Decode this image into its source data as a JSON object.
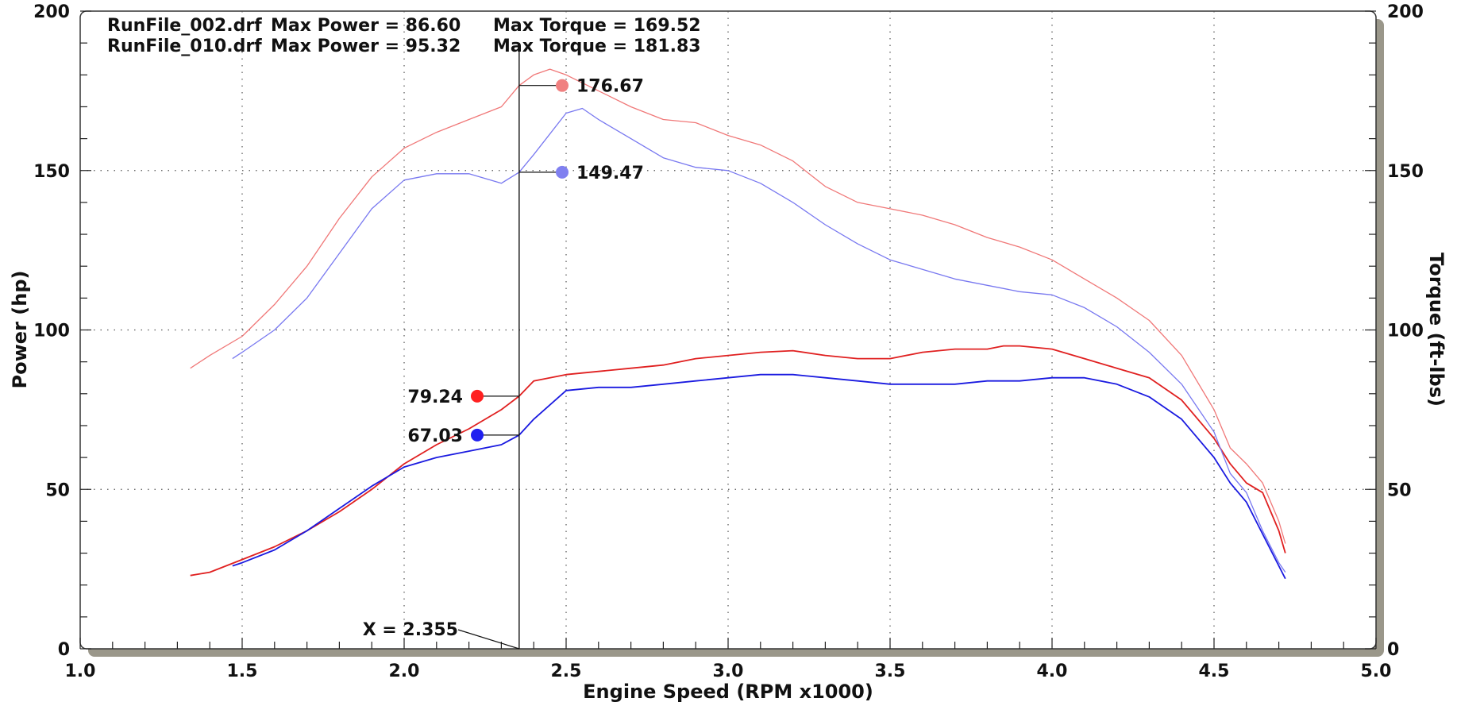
{
  "chart_data": {
    "type": "line",
    "xlabel": "Engine Speed (RPM x1000)",
    "ylabel": "Power (hp)",
    "y2label": "Torque (ft-lbs)",
    "xlim": [
      1.0,
      5.0
    ],
    "ylim": [
      0,
      200
    ],
    "y2lim": [
      0,
      200
    ],
    "x_ticks": [
      "1.0",
      "1.5",
      "2.0",
      "2.5",
      "3.0",
      "3.5",
      "4.0",
      "4.5",
      "5.0"
    ],
    "y_ticks": [
      "0",
      "50",
      "100",
      "150",
      "200"
    ],
    "y2_ticks": [
      "0",
      "50",
      "100",
      "150",
      "200"
    ],
    "grid": true,
    "header": [
      {
        "file": "RunFile_002.drf",
        "power": "Max Power = 86.60",
        "torque": "Max Torque = 169.52"
      },
      {
        "file": "RunFile_010.drf",
        "power": "Max Power = 95.32",
        "torque": "Max Torque = 181.83"
      }
    ],
    "cursor": {
      "x": 2.355,
      "label": "X = 2.355"
    },
    "markers": [
      {
        "series": "torque_010",
        "value": 176.67,
        "label": "176.67",
        "color": "#f08080"
      },
      {
        "series": "torque_002",
        "value": 149.47,
        "label": "149.47",
        "color": "#8080f0"
      },
      {
        "series": "power_010",
        "value": 79.24,
        "label": "79.24",
        "color": "#ff2020"
      },
      {
        "series": "power_002",
        "value": 67.03,
        "label": "67.03",
        "color": "#2020f0"
      }
    ],
    "series": [
      {
        "id": "power_010",
        "axis": "left",
        "color": "#e02020",
        "x": [
          1.34,
          1.4,
          1.5,
          1.6,
          1.7,
          1.8,
          1.9,
          2.0,
          2.1,
          2.2,
          2.3,
          2.355,
          2.4,
          2.5,
          2.6,
          2.7,
          2.8,
          2.9,
          3.0,
          3.1,
          3.2,
          3.3,
          3.4,
          3.5,
          3.6,
          3.7,
          3.8,
          3.85,
          3.9,
          4.0,
          4.1,
          4.2,
          4.3,
          4.4,
          4.5,
          4.55,
          4.6,
          4.65,
          4.7,
          4.72
        ],
        "y": [
          23,
          24,
          28,
          32,
          37,
          43,
          50,
          58,
          64,
          69,
          75,
          79.24,
          84,
          86,
          87,
          88,
          89,
          91,
          92,
          93,
          93.5,
          92,
          91,
          91,
          93,
          94,
          94,
          95,
          95,
          94,
          91,
          88,
          85,
          78,
          66,
          58,
          52,
          49,
          37,
          30
        ]
      },
      {
        "id": "power_002",
        "axis": "left",
        "color": "#1a1ae0",
        "x": [
          1.47,
          1.5,
          1.6,
          1.7,
          1.8,
          1.9,
          2.0,
          2.1,
          2.2,
          2.3,
          2.355,
          2.4,
          2.5,
          2.6,
          2.7,
          2.8,
          2.9,
          3.0,
          3.1,
          3.2,
          3.3,
          3.4,
          3.5,
          3.6,
          3.7,
          3.8,
          3.9,
          4.0,
          4.1,
          4.2,
          4.3,
          4.4,
          4.5,
          4.55,
          4.6,
          4.65,
          4.7,
          4.72
        ],
        "y": [
          26,
          27,
          31,
          37,
          44,
          51,
          57,
          60,
          62,
          64,
          67.03,
          72,
          81,
          82,
          82,
          83,
          84,
          85,
          86,
          86,
          85,
          84,
          83,
          83,
          83,
          84,
          84,
          85,
          85,
          83,
          79,
          72,
          60,
          52,
          46,
          36,
          26,
          22
        ]
      },
      {
        "id": "torque_010",
        "axis": "right",
        "color": "#f07878",
        "x": [
          1.34,
          1.4,
          1.5,
          1.6,
          1.7,
          1.8,
          1.9,
          2.0,
          2.1,
          2.2,
          2.3,
          2.355,
          2.4,
          2.45,
          2.5,
          2.6,
          2.7,
          2.8,
          2.9,
          3.0,
          3.1,
          3.2,
          3.3,
          3.4,
          3.5,
          3.6,
          3.7,
          3.8,
          3.9,
          4.0,
          4.1,
          4.2,
          4.3,
          4.4,
          4.5,
          4.55,
          4.6,
          4.65,
          4.7,
          4.72
        ],
        "y": [
          88,
          92,
          98,
          108,
          120,
          135,
          148,
          157,
          162,
          166,
          170,
          176.67,
          180,
          181.8,
          180,
          175,
          170,
          166,
          165,
          161,
          158,
          153,
          145,
          140,
          138,
          136,
          133,
          129,
          126,
          122,
          116,
          110,
          103,
          92,
          75,
          63,
          58,
          52,
          40,
          33
        ]
      },
      {
        "id": "torque_002",
        "axis": "right",
        "color": "#7878f0",
        "x": [
          1.47,
          1.5,
          1.6,
          1.7,
          1.8,
          1.9,
          2.0,
          2.1,
          2.2,
          2.3,
          2.355,
          2.4,
          2.5,
          2.55,
          2.6,
          2.7,
          2.8,
          2.9,
          3.0,
          3.1,
          3.2,
          3.3,
          3.4,
          3.5,
          3.6,
          3.7,
          3.8,
          3.9,
          4.0,
          4.1,
          4.2,
          4.3,
          4.4,
          4.5,
          4.55,
          4.6,
          4.65,
          4.7,
          4.72
        ],
        "y": [
          91,
          93,
          100,
          110,
          124,
          138,
          147,
          149,
          149,
          146,
          149.47,
          155,
          168,
          169.5,
          166,
          160,
          154,
          151,
          150,
          146,
          140,
          133,
          127,
          122,
          119,
          116,
          114,
          112,
          111,
          107,
          101,
          93,
          83,
          68,
          55,
          49,
          37,
          27,
          24
        ]
      }
    ]
  }
}
